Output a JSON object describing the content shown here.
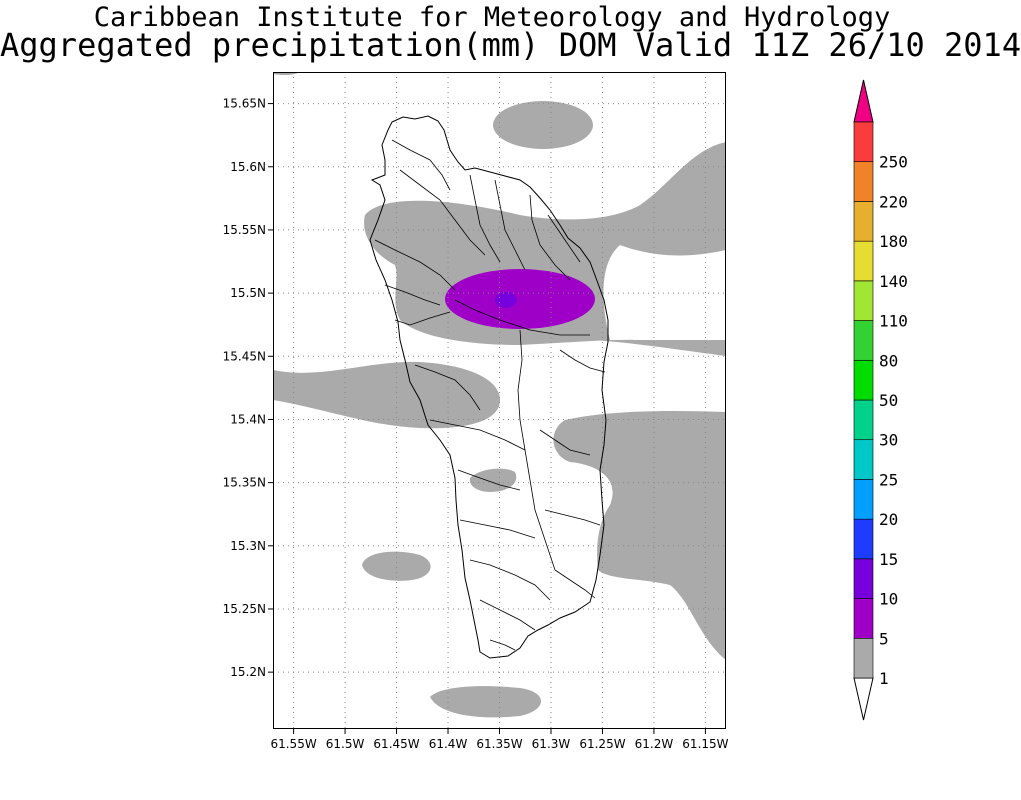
{
  "title": {
    "line1": "Caribbean Institute for Meteorology and Hydrology",
    "line2": "Aggregated precipitation(mm) DOM Valid 11Z 26/10 2014"
  },
  "map": {
    "region": "Dominica",
    "lat_range": [
      15.155,
      15.675
    ],
    "lon_range": [
      -61.57,
      -61.13
    ],
    "lat_ticks": [
      "15.65N",
      "15.6N",
      "15.55N",
      "15.5N",
      "15.45N",
      "15.4N",
      "15.35N",
      "15.3N",
      "15.25N",
      "15.2N"
    ],
    "lon_ticks": [
      "61.55W",
      "61.5W",
      "61.45W",
      "61.4W",
      "61.35W",
      "61.3W",
      "61.25W",
      "61.2W",
      "61.15W"
    ],
    "grid": "dotted",
    "precip_areas": [
      {
        "band": "1-5",
        "color": "#aaaaaa",
        "description": "broad band across north-central island"
      },
      {
        "band": "5-10",
        "color": "#9f00c8",
        "description": "ellipse over north-central island"
      },
      {
        "band": "10-15",
        "color": "#7800dc",
        "description": "small core near 15.49N 61.34W"
      }
    ]
  },
  "colorbar": {
    "levels": [
      "1",
      "5",
      "10",
      "15",
      "20",
      "25",
      "30",
      "50",
      "80",
      "110",
      "140",
      "180",
      "220",
      "250"
    ],
    "colors": [
      "#aaaaaa",
      "#9f00c8",
      "#7800dc",
      "#1e3cff",
      "#00a0ff",
      "#00c8c8",
      "#00d28c",
      "#00dc00",
      "#32d232",
      "#a0e632",
      "#e6dc32",
      "#e6af2d",
      "#f08228",
      "#fa3c3c"
    ],
    "under_color": "#ffffff",
    "over_color": "#f00082"
  }
}
